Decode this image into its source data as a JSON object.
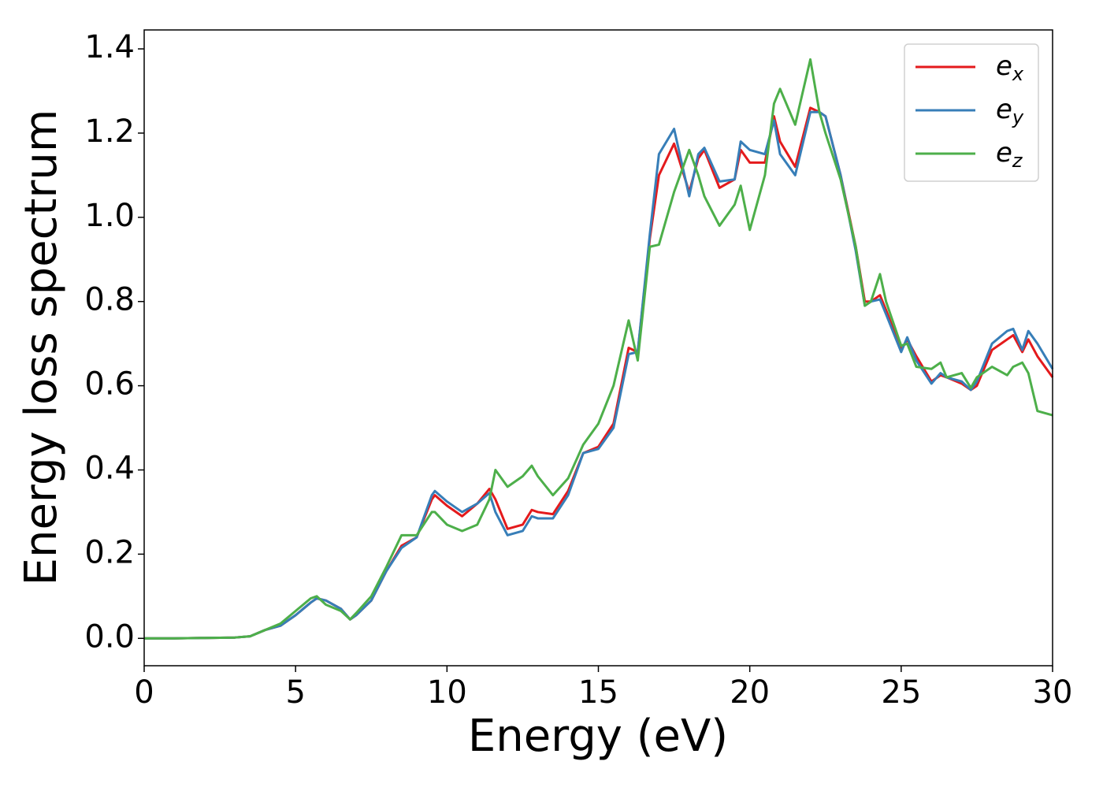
{
  "chart_data": {
    "type": "line",
    "x_label": "Energy (eV)",
    "y_label": "Energy loss spectrum",
    "xlim": [
      0,
      30
    ],
    "ylim": [
      -0.065,
      1.445
    ],
    "xticks": [
      0,
      5,
      10,
      15,
      20,
      25,
      30
    ],
    "yticks": [
      {
        "value": 0,
        "label": "0.0"
      },
      {
        "value": 0.2,
        "label": "0.2"
      },
      {
        "value": 0.4,
        "label": "0.4"
      },
      {
        "value": 0.6,
        "label": "0.6"
      },
      {
        "value": 0.8,
        "label": "0.8"
      },
      {
        "value": 1,
        "label": "1.0"
      },
      {
        "value": 1.2,
        "label": "1.2"
      },
      {
        "value": 1.4,
        "label": "1.4"
      }
    ],
    "legend": "upper right",
    "x": [
      0,
      1,
      2,
      3,
      3.5,
      4,
      4.5,
      5,
      5.5,
      5.7,
      6,
      6.5,
      6.8,
      7,
      7.5,
      8,
      8.5,
      9,
      9.5,
      9.6,
      10,
      10.5,
      11,
      11.4,
      11.6,
      12,
      12.5,
      12.8,
      13,
      13.5,
      14,
      14.5,
      15,
      15.5,
      16,
      16.3,
      16.7,
      17,
      17.5,
      18,
      18.3,
      18.5,
      19,
      19.5,
      19.7,
      20,
      20.5,
      20.8,
      21,
      21.5,
      22,
      22.3,
      22.5,
      23,
      23.5,
      23.8,
      24,
      24.3,
      24.5,
      25,
      25.2,
      25.5,
      26,
      26.3,
      26.5,
      27,
      27.3,
      27.5,
      28,
      28.5,
      28.7,
      29,
      29.2,
      29.5,
      30
    ],
    "series": [
      {
        "name": "e_x",
        "color": "#e41a1c",
        "values": [
          0,
          0,
          0.001,
          0.002,
          0.005,
          0.02,
          0.03,
          0.055,
          0.085,
          0.095,
          0.09,
          0.07,
          0.045,
          0.055,
          0.09,
          0.16,
          0.22,
          0.24,
          0.33,
          0.34,
          0.315,
          0.29,
          0.32,
          0.355,
          0.33,
          0.26,
          0.27,
          0.305,
          0.3,
          0.295,
          0.35,
          0.44,
          0.455,
          0.51,
          0.69,
          0.68,
          0.95,
          1.1,
          1.175,
          1.06,
          1.14,
          1.16,
          1.07,
          1.09,
          1.16,
          1.13,
          1.13,
          1.24,
          1.18,
          1.12,
          1.26,
          1.25,
          1.24,
          1.1,
          0.93,
          0.8,
          0.8,
          0.815,
          0.78,
          0.685,
          0.71,
          0.67,
          0.61,
          0.625,
          0.62,
          0.605,
          0.59,
          0.6,
          0.685,
          0.71,
          0.72,
          0.68,
          0.71,
          0.67,
          0.62
        ]
      },
      {
        "name": "e_y",
        "color": "#377eb8",
        "values": [
          0,
          0,
          0.001,
          0.002,
          0.005,
          0.02,
          0.03,
          0.055,
          0.085,
          0.095,
          0.09,
          0.07,
          0.045,
          0.055,
          0.09,
          0.16,
          0.215,
          0.24,
          0.34,
          0.35,
          0.325,
          0.3,
          0.32,
          0.345,
          0.3,
          0.245,
          0.255,
          0.29,
          0.285,
          0.285,
          0.34,
          0.44,
          0.45,
          0.5,
          0.675,
          0.68,
          0.96,
          1.15,
          1.21,
          1.05,
          1.15,
          1.165,
          1.085,
          1.09,
          1.18,
          1.16,
          1.15,
          1.23,
          1.15,
          1.1,
          1.25,
          1.25,
          1.24,
          1.1,
          0.92,
          0.79,
          0.8,
          0.805,
          0.77,
          0.68,
          0.715,
          0.66,
          0.605,
          0.63,
          0.62,
          0.61,
          0.59,
          0.61,
          0.7,
          0.73,
          0.735,
          0.685,
          0.73,
          0.7,
          0.64
        ]
      },
      {
        "name": "e_z",
        "color": "#4daf4a",
        "values": [
          0,
          0,
          0.001,
          0.002,
          0.005,
          0.02,
          0.035,
          0.065,
          0.095,
          0.1,
          0.08,
          0.065,
          0.045,
          0.06,
          0.1,
          0.17,
          0.245,
          0.245,
          0.3,
          0.3,
          0.27,
          0.255,
          0.27,
          0.33,
          0.4,
          0.36,
          0.385,
          0.41,
          0.385,
          0.34,
          0.38,
          0.46,
          0.51,
          0.6,
          0.755,
          0.66,
          0.93,
          0.935,
          1.06,
          1.16,
          1.1,
          1.05,
          0.98,
          1.03,
          1.075,
          0.97,
          1.1,
          1.27,
          1.305,
          1.22,
          1.375,
          1.25,
          1.2,
          1.09,
          0.93,
          0.79,
          0.8,
          0.865,
          0.8,
          0.695,
          0.7,
          0.645,
          0.64,
          0.655,
          0.62,
          0.63,
          0.595,
          0.62,
          0.645,
          0.625,
          0.645,
          0.655,
          0.63,
          0.54,
          0.53
        ]
      }
    ]
  }
}
